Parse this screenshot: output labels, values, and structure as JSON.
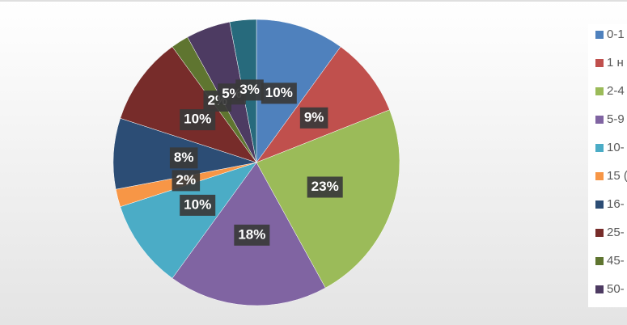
{
  "chart_data": {
    "type": "pie",
    "categories": [
      "0-1",
      "1 н",
      "2-4",
      "5-9",
      "10-",
      "15 (",
      "16-",
      "25-",
      "45-",
      "50-",
      null
    ],
    "values": [
      10,
      9,
      23,
      18,
      10,
      2,
      8,
      10,
      2,
      5,
      3
    ],
    "value_labels": [
      "10%",
      "9%",
      "23%",
      "18%",
      "10%",
      "2%",
      "8%",
      "10%",
      "2%",
      "5%",
      "3%"
    ],
    "colors": [
      "#4f81bd",
      "#c0504d",
      "#9bbb59",
      "#8064a2",
      "#4bacc6",
      "#f79646",
      "#2c4d75",
      "#772c2a",
      "#5f7530",
      "#4d3b62",
      "#276a7c"
    ]
  }
}
